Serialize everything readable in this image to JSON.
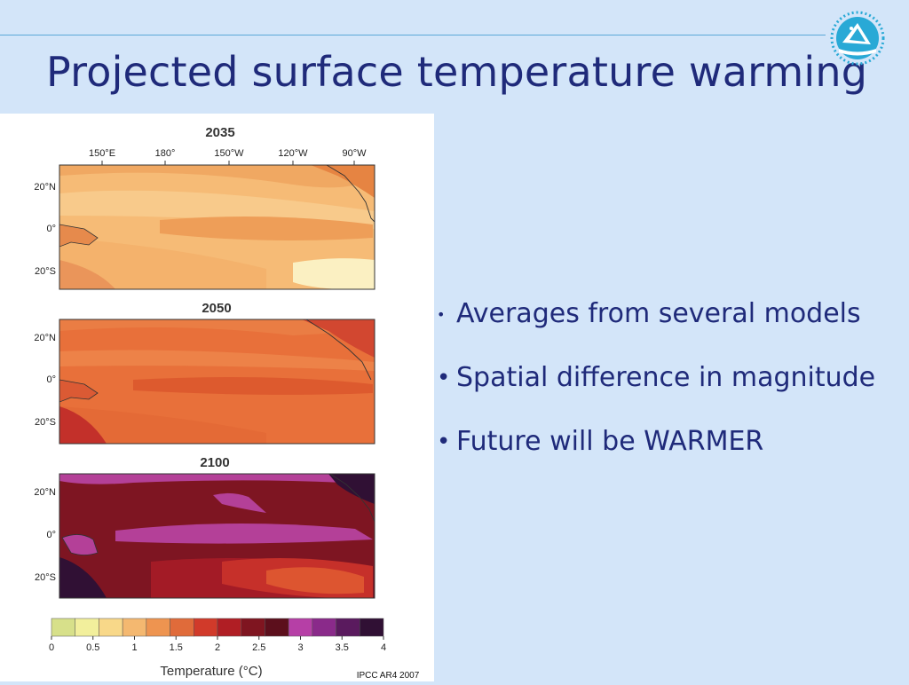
{
  "slide": {
    "title": "Projected surface temperature warming",
    "bullets": [
      "Averages from several models",
      "Spatial difference in magnitude",
      "Future will be WARMER"
    ],
    "bullet_glyph": "•"
  },
  "figure": {
    "panels": [
      {
        "year": "2035"
      },
      {
        "year": "2050"
      },
      {
        "year": "2100"
      }
    ],
    "lon_ticks": [
      "150°E",
      "180°",
      "150°W",
      "120°W",
      "90°W"
    ],
    "lat_ticks": [
      "20°N",
      "0°",
      "20°S"
    ],
    "colorbar": {
      "labels": [
        "0",
        "0.5",
        "1",
        "1.5",
        "2",
        "2.5",
        "3",
        "3.5",
        "4"
      ],
      "colors": [
        "#d7e08a",
        "#f2ef9c",
        "#f8d889",
        "#f4b870",
        "#ee9450",
        "#e06b3a",
        "#d13a2a",
        "#b01e24",
        "#7f1520",
        "#5c0f1c",
        "#b63fa6",
        "#8a2a8a",
        "#5a1a5e",
        "#301034"
      ],
      "title": "Temperature (°C)"
    },
    "source": "IPCC AR4 2007"
  },
  "logo": {
    "icon": "sail-logo-icon",
    "color": "#29a9d6"
  }
}
